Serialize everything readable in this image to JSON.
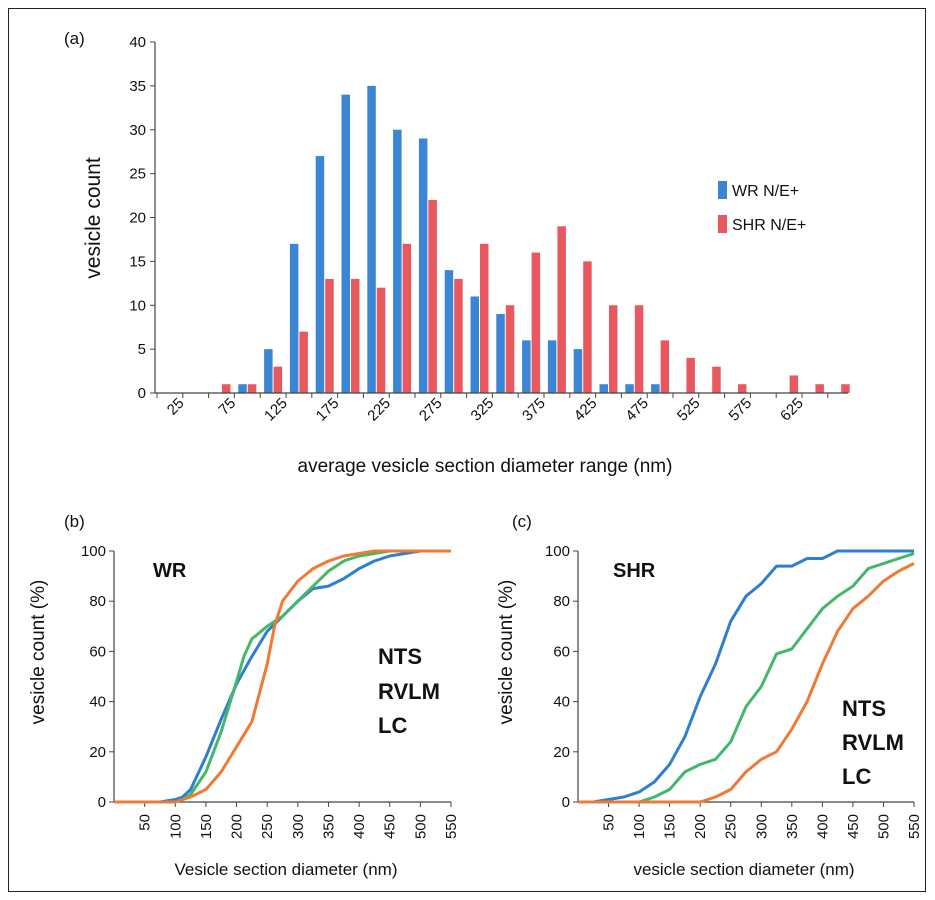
{
  "colors": {
    "wr": "#3a86d4",
    "shr": "#e8585f",
    "nts": "#2e7fd0",
    "rvlm": "#44b868",
    "lc": "#f07a35",
    "axis": "#444444"
  },
  "chart_data": [
    {
      "panel": "(a)",
      "type": "bar",
      "ylabel": "vesicle count",
      "xlabel": "average vesicle section diameter range (nm)",
      "ylim": [
        0,
        40
      ],
      "yticks": [
        "0",
        "5",
        "10",
        "15",
        "20",
        "25",
        "30",
        "35",
        "40"
      ],
      "categories": [
        "25",
        "50",
        "75",
        "100",
        "125",
        "150",
        "175",
        "200",
        "225",
        "250",
        "275",
        "300",
        "325",
        "350",
        "375",
        "400",
        "425",
        "450",
        "475",
        "500",
        "525",
        "550",
        "575",
        "600",
        "625",
        "650",
        "675"
      ],
      "xticklabels": [
        "25",
        "",
        "75",
        "",
        "125",
        "",
        "175",
        "",
        "225",
        "",
        "275",
        "",
        "325",
        "",
        "375",
        "",
        "425",
        "",
        "475",
        "",
        "525",
        "",
        "575",
        "",
        "625",
        "",
        ""
      ],
      "legend_position": "right",
      "series": [
        {
          "name": "WR N/E+",
          "values": [
            0,
            0,
            0,
            1,
            5,
            17,
            27,
            34,
            35,
            30,
            29,
            14,
            11,
            9,
            6,
            6,
            5,
            1,
            1,
            1,
            0,
            0,
            0,
            0,
            0,
            0,
            0
          ]
        },
        {
          "name": "SHR N/E+",
          "values": [
            0,
            0,
            1,
            1,
            3,
            7,
            13,
            13,
            12,
            17,
            22,
            13,
            17,
            10,
            16,
            19,
            15,
            10,
            10,
            6,
            4,
            3,
            1,
            0,
            2,
            1,
            1
          ]
        }
      ]
    },
    {
      "panel": "(b)",
      "type": "line",
      "title": "WR",
      "ylabel": "vesicle count  (%)",
      "xlabel": "Vesicle section diameter (nm)",
      "xlim": [
        0,
        550
      ],
      "ylim": [
        0,
        100
      ],
      "xticks": [
        "50",
        "100",
        "150",
        "200",
        "250",
        "300",
        "350",
        "400",
        "450",
        "500",
        "550"
      ],
      "yticks": [
        "0",
        "20",
        "40",
        "60",
        "80",
        "100"
      ],
      "series": [
        {
          "name": "NTS",
          "x": [
            0,
            25,
            50,
            75,
            100,
            112,
            125,
            150,
            175,
            200,
            225,
            250,
            275,
            300,
            325,
            350,
            375,
            400,
            425,
            450,
            475,
            500,
            525,
            550
          ],
          "y": [
            0,
            0,
            0,
            0,
            1,
            2,
            5,
            18,
            33,
            47,
            58,
            68,
            74,
            80,
            85,
            86,
            89,
            93,
            96,
            98,
            99,
            100,
            100,
            100
          ]
        },
        {
          "name": "RVLM",
          "x": [
            0,
            25,
            50,
            75,
            100,
            112,
            125,
            150,
            175,
            200,
            212,
            225,
            250,
            275,
            300,
            325,
            350,
            375,
            400,
            425,
            450,
            475,
            500,
            525,
            550
          ],
          "y": [
            0,
            0,
            0,
            0,
            0,
            1,
            3,
            12,
            28,
            48,
            58,
            65,
            70,
            74,
            80,
            86,
            92,
            96,
            98,
            99,
            100,
            100,
            100,
            100,
            100
          ]
        },
        {
          "name": "LC",
          "x": [
            0,
            25,
            50,
            75,
            100,
            125,
            150,
            175,
            200,
            225,
            250,
            262,
            275,
            300,
            325,
            350,
            375,
            400,
            425,
            450,
            475,
            500,
            525,
            550
          ],
          "y": [
            0,
            0,
            0,
            0,
            0,
            2,
            5,
            12,
            22,
            32,
            55,
            70,
            80,
            88,
            93,
            96,
            98,
            99,
            100,
            100,
            100,
            100,
            100,
            100
          ]
        }
      ]
    },
    {
      "panel": "(c)",
      "type": "line",
      "title": "SHR",
      "ylabel": "vesicle count  (%)",
      "xlabel": "vesicle section diameter (nm)",
      "xlim": [
        0,
        550
      ],
      "ylim": [
        0,
        100
      ],
      "xticks": [
        "50",
        "100",
        "150",
        "200",
        "250",
        "300",
        "350",
        "400",
        "450",
        "500",
        "550"
      ],
      "yticks": [
        "0",
        "20",
        "40",
        "60",
        "80",
        "100"
      ],
      "series": [
        {
          "name": "NTS",
          "x": [
            0,
            25,
            50,
            75,
            100,
            125,
            150,
            175,
            200,
            225,
            250,
            275,
            300,
            325,
            350,
            375,
            400,
            425,
            450,
            475,
            500,
            525,
            550
          ],
          "y": [
            0,
            0,
            1,
            2,
            4,
            8,
            15,
            26,
            42,
            55,
            72,
            82,
            87,
            94,
            94,
            97,
            97,
            100,
            100,
            100,
            100,
            100,
            100
          ]
        },
        {
          "name": "RVLM",
          "x": [
            0,
            25,
            50,
            75,
            100,
            125,
            150,
            175,
            200,
            225,
            250,
            275,
            300,
            325,
            350,
            375,
            400,
            425,
            450,
            475,
            500,
            525,
            550
          ],
          "y": [
            0,
            0,
            0,
            0,
            0,
            2,
            5,
            12,
            15,
            17,
            24,
            38,
            46,
            59,
            61,
            69,
            77,
            82,
            86,
            93,
            95,
            97,
            99
          ]
        },
        {
          "name": "LC",
          "x": [
            0,
            25,
            50,
            75,
            100,
            125,
            150,
            175,
            200,
            225,
            250,
            275,
            300,
            325,
            350,
            375,
            400,
            425,
            450,
            475,
            500,
            525,
            550
          ],
          "y": [
            0,
            0,
            0,
            0,
            0,
            0,
            0,
            0,
            0,
            2,
            5,
            12,
            17,
            20,
            29,
            40,
            55,
            68,
            77,
            82,
            88,
            92,
            95
          ]
        }
      ]
    }
  ]
}
